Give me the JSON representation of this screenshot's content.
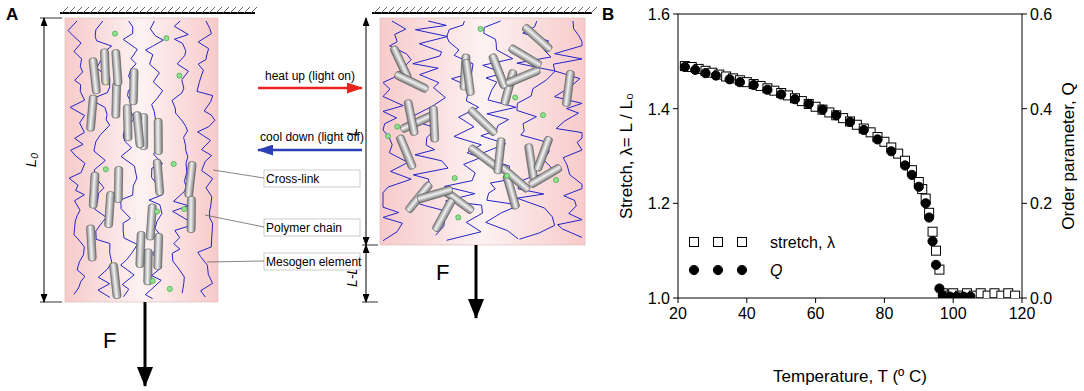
{
  "panel_labels": [
    "A",
    "B"
  ],
  "panel_a": {
    "heat_label": "heat up (light on)",
    "cool_label": "cool down (light off)",
    "annotations": [
      "Cross-link",
      "Polymer chain",
      "Mesogen element"
    ],
    "dimensions": {
      "initial": "L₀",
      "current": "L",
      "extension": "L-L₀"
    },
    "force": "F"
  },
  "chart_data": {
    "type": "scatter",
    "x_label": "Temperature, T (º C)",
    "y_label": "Stretch, λ= L / L₀",
    "y2_label": "Order parameter, Q",
    "xlim": [
      20,
      120
    ],
    "xticks": [
      20,
      40,
      60,
      80,
      100,
      120
    ],
    "ylim": [
      1.0,
      1.6
    ],
    "yticks": [
      {
        "value": 1.0,
        "label": "1.0"
      },
      1.2,
      1.4,
      1.6
    ],
    "y2lim": [
      0,
      0.6
    ],
    "y2ticks": [
      {
        "value": 0,
        "label": "0.0"
      },
      0.2,
      0.4,
      0.6
    ],
    "legend": "lower left",
    "grid": false,
    "series": [
      {
        "name": "stretch, λ",
        "color": "#000000",
        "marker": "square-open",
        "axis": "y",
        "x": [
          22,
          24,
          26,
          28,
          30,
          32,
          34,
          36,
          38,
          40,
          42,
          44,
          46,
          48,
          50,
          52,
          54,
          56,
          58,
          60,
          62,
          64,
          66,
          68,
          70,
          72,
          74,
          76,
          78,
          80,
          82,
          84,
          86,
          88,
          90,
          91,
          92,
          93,
          94,
          95,
          96,
          97,
          98,
          100,
          102,
          104,
          106,
          108,
          110,
          112,
          114,
          116,
          118
        ],
        "values": [
          1.49,
          1.488,
          1.484,
          1.48,
          1.476,
          1.472,
          1.468,
          1.464,
          1.46,
          1.456,
          1.452,
          1.448,
          1.443,
          1.438,
          1.433,
          1.428,
          1.422,
          1.416,
          1.41,
          1.404,
          1.398,
          1.392,
          1.386,
          1.38,
          1.373,
          1.366,
          1.358,
          1.35,
          1.34,
          1.33,
          1.318,
          1.305,
          1.29,
          1.27,
          1.245,
          1.23,
          1.21,
          1.18,
          1.14,
          1.1,
          1.06,
          1.01,
          1.005,
          1.01,
          1.005,
          1.01,
          1.005,
          1.01,
          1.005,
          1.01,
          1.005,
          1.01,
          1.005
        ]
      },
      {
        "name": "Q",
        "color": "#000000",
        "marker": "circle",
        "axis": "y2",
        "x": [
          22,
          25,
          28,
          31,
          35,
          38,
          42,
          46,
          50,
          54,
          58,
          62,
          66,
          70,
          74,
          78,
          82,
          86,
          88,
          90,
          92,
          93,
          94,
          95,
          96,
          97,
          99,
          101,
          103,
          105
        ],
        "values": [
          0.488,
          0.482,
          0.475,
          0.47,
          0.462,
          0.456,
          0.45,
          0.44,
          0.43,
          0.42,
          0.41,
          0.398,
          0.386,
          0.372,
          0.355,
          0.335,
          0.31,
          0.28,
          0.26,
          0.235,
          0.2,
          0.17,
          0.12,
          0.07,
          0.02,
          0.005,
          0.003,
          0.003,
          0.003,
          0.003
        ]
      }
    ]
  }
}
